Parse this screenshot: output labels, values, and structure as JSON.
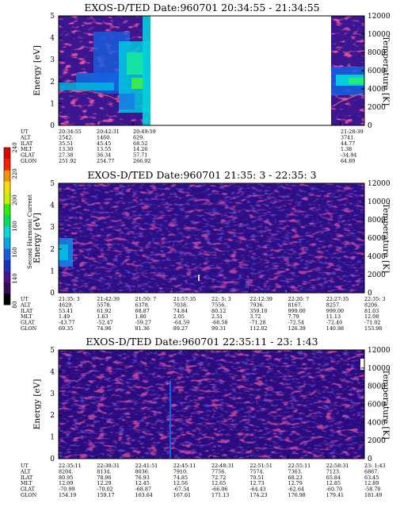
{
  "colorbar": {
    "label": "Second Harmonic Current",
    "ticks": [
      "80",
      "140",
      "160",
      "180",
      "200",
      "220",
      "240"
    ],
    "colors": [
      "#000000",
      "#3a0a5a",
      "#4a1090",
      "#1830c8",
      "#1a5ee0",
      "#00a8e8",
      "#00dcd0",
      "#00e060",
      "#30f000",
      "#c8f000",
      "#f8e000",
      "#f89000",
      "#f82000",
      "#e00000"
    ]
  },
  "chart_data": [
    {
      "type": "heatmap",
      "title": "EXOS-D/TED   Date:960701  20:34:55 - 21:34:55",
      "ylabel": "Energy [eV]",
      "ylabel_right": "Temperature [K]",
      "ylim": [
        0,
        5
      ],
      "ylim_right": [
        0,
        12000
      ],
      "yticks": [
        "0",
        "1",
        "2",
        "3",
        "4",
        "5"
      ],
      "yticks_right": [
        "0",
        "2000",
        "4000",
        "6000",
        "8000",
        "10000",
        "12000"
      ],
      "data_gap": true,
      "table": {
        "row_labels": [
          "UT",
          "ALT",
          "ILAT",
          "MLT",
          "GLAT",
          "GLON"
        ],
        "columns": [
          [
            "20:34:55",
            "2542.",
            "35.51",
            "13.30",
            "27.38",
            "251.92"
          ],
          [
            "20:42:31",
            "1460.",
            "45.45",
            "13.55",
            "36.34",
            "254.77"
          ],
          [
            "20:49:59",
            "629.",
            "68.52",
            "14.26",
            "57.71",
            "266.92"
          ],
          [
            "21:28:39",
            "3741.",
            "44.77",
            "1.38",
            "-34.94",
            "64.89"
          ]
        ]
      }
    },
    {
      "type": "heatmap",
      "title": "EXOS-D/TED   Date:960701  21:35: 3 - 22:35: 3",
      "ylabel": "Energy [eV]",
      "ylabel_right": "Temperature [K]",
      "ylim": [
        0,
        5
      ],
      "ylim_right": [
        0,
        12000
      ],
      "yticks": [
        "0",
        "1",
        "2",
        "3",
        "4",
        "5"
      ],
      "yticks_right": [
        "0",
        "2000",
        "4000",
        "6000",
        "8000",
        "10000",
        "12000"
      ],
      "table": {
        "row_labels": [
          "UT",
          "ALT",
          "ILAT",
          "MLT",
          "GLAT",
          "GLON"
        ],
        "columns": [
          [
            "21:35: 3",
            "4629.",
            "53.41",
            "1.49",
            "-43.77",
            "69.35"
          ],
          [
            "21:42:39",
            "5578.",
            "61.92",
            "1.63",
            "-52.47",
            "74.96"
          ],
          [
            "21:50: 7",
            "6378.",
            "68.87",
            "1.80",
            "-59.27",
            "81.36"
          ],
          [
            "21:57:35",
            "7038.",
            "74.84",
            "2.05",
            "-64.59",
            "89.27"
          ],
          [
            "22: 5: 3",
            "7556.",
            "80.12",
            "2.51",
            "-68.58",
            "99.31"
          ],
          [
            "22:12:39",
            "7936.",
            "359.10",
            "3.72",
            "-71.28",
            "112.02"
          ],
          [
            "22:20: 7",
            "8167.",
            "999.00",
            "7.79",
            "-72.54",
            "126.39"
          ],
          [
            "22:27:35",
            "8257.",
            "999.00",
            "11.13",
            "-72.40",
            "140.98"
          ],
          [
            "22:35: 3",
            "8206.",
            "81.03",
            "12.08",
            "-71.02",
            "153.98"
          ]
        ]
      }
    },
    {
      "type": "heatmap",
      "title": "EXOS-D/TED   Date:960701  22:35:11 - 23: 1:43",
      "ylabel": "Energy [eV]",
      "ylabel_right": "Temperature [K]",
      "ylim": [
        0,
        5
      ],
      "ylim_right": [
        0,
        12000
      ],
      "yticks": [
        "0",
        "1",
        "2",
        "3",
        "4",
        "5"
      ],
      "yticks_right": [
        "0",
        "2000",
        "4000",
        "6000",
        "8000",
        "10000",
        "12000"
      ],
      "table": {
        "row_labels": [
          "UT",
          "ALT",
          "ILAT",
          "MLT",
          "GLAT",
          "GLON"
        ],
        "columns": [
          [
            "22:35:11",
            "8204.",
            "80.95",
            "12.09",
            "-70.99",
            "154.19"
          ],
          [
            "22:38:31",
            "8134.",
            "78.96",
            "12.29",
            "-70.02",
            "159.17"
          ],
          [
            "22:41:51",
            "8036.",
            "76.93",
            "12.45",
            "-68.87",
            "163.64"
          ],
          [
            "22:45:11",
            "7910.",
            "74.85",
            "12.56",
            "-67.54",
            "167.61"
          ],
          [
            "22:48:31",
            "7756.",
            "72.72",
            "12.65",
            "-66.06",
            "171.13"
          ],
          [
            "22:51:51",
            "7574.",
            "70.51",
            "12.73",
            "-64.43",
            "174.23"
          ],
          [
            "22:55:11",
            "7363.",
            "68.23",
            "12.79",
            "-62.64",
            "176.98"
          ],
          [
            "22:58:31",
            "7123.",
            "65.84",
            "12.85",
            "-60.70",
            "179.41"
          ],
          [
            "23: 1:43",
            "6867.",
            "63.45",
            "12.89",
            "-58.70",
            "181.49"
          ]
        ]
      }
    }
  ]
}
